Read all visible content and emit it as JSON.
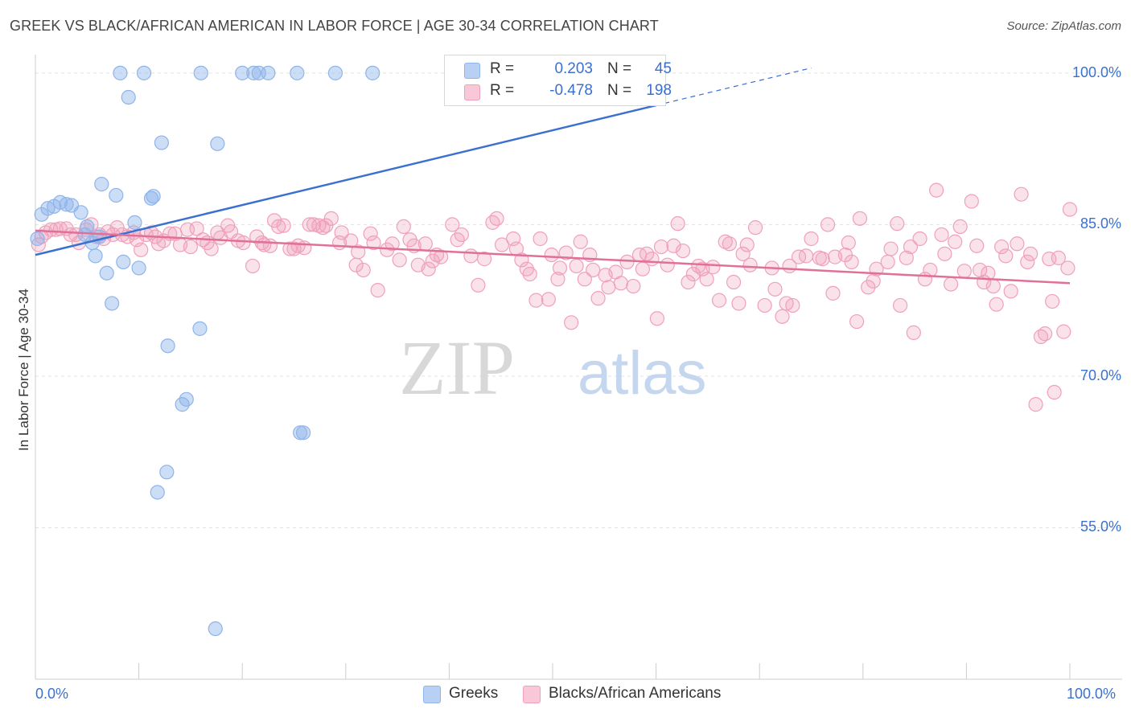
{
  "title": "GREEK VS BLACK/AFRICAN AMERICAN IN LABOR FORCE | AGE 30-34 CORRELATION CHART",
  "source": "Source: ZipAtlas.com",
  "watermark": {
    "zip": "ZIP",
    "atlas": "atlas"
  },
  "colors": {
    "blue": "#8fb4ea",
    "blue_fill": "rgba(143,180,234,0.45)",
    "blue_line": "#3a70d0",
    "pink": "#f0a0bb",
    "pink_fill": "rgba(240,160,187,0.30)",
    "pink_line": "#e0709a",
    "tick_label": "#3a70d0"
  },
  "legend": {
    "rows": [
      {
        "r_label": "R =",
        "r_value": "0.203",
        "n_label": "N =",
        "n_value": "45"
      },
      {
        "r_label": "R =",
        "r_value": "-0.478",
        "n_label": "N =",
        "n_value": "198"
      }
    ]
  },
  "bottom_legend": {
    "greeks": "Greeks",
    "blacks": "Blacks/African Americans"
  },
  "chart_data": {
    "type": "scatter",
    "title": "GREEK VS BLACK/AFRICAN AMERICAN IN LABOR FORCE | AGE 30-34 CORRELATION CHART",
    "xlabel": "",
    "ylabel": "In Labor Force | Age 30-34",
    "xlim": [
      0,
      100
    ],
    "ylim": [
      40,
      101.5
    ],
    "x_tick_labels": [
      "0.0%",
      "100.0%"
    ],
    "y_ticks": [
      55,
      70,
      85,
      100
    ],
    "y_tick_labels": [
      "55.0%",
      "70.0%",
      "85.0%",
      "100.0%"
    ],
    "grid": true,
    "series": [
      {
        "name": "Greeks",
        "r": 0.203,
        "n": 45,
        "trend": {
          "x0": 0,
          "y0": 82.0,
          "x1": 75,
          "y1": 100.5,
          "solid_until_x": 60
        },
        "points": [
          [
            0.2,
            83.6
          ],
          [
            0.6,
            86.0
          ],
          [
            1.2,
            86.6
          ],
          [
            1.8,
            86.8
          ],
          [
            2.4,
            87.2
          ],
          [
            3.0,
            87.0
          ],
          [
            3.5,
            86.9
          ],
          [
            4.4,
            86.2
          ],
          [
            4.8,
            84.0
          ],
          [
            5.0,
            84.8
          ],
          [
            5.5,
            83.2
          ],
          [
            5.8,
            81.9
          ],
          [
            6.2,
            83.8
          ],
          [
            6.4,
            89.0
          ],
          [
            6.9,
            80.2
          ],
          [
            7.4,
            77.2
          ],
          [
            7.8,
            87.9
          ],
          [
            8.2,
            100.0
          ],
          [
            8.5,
            81.3
          ],
          [
            9.0,
            97.6
          ],
          [
            9.6,
            85.2
          ],
          [
            10.0,
            80.7
          ],
          [
            10.5,
            100.0
          ],
          [
            11.2,
            87.6
          ],
          [
            11.4,
            87.8
          ],
          [
            12.2,
            93.1
          ],
          [
            12.8,
            73.0
          ],
          [
            11.8,
            58.5
          ],
          [
            12.7,
            60.5
          ],
          [
            14.2,
            67.2
          ],
          [
            14.6,
            67.7
          ],
          [
            15.9,
            74.7
          ],
          [
            16.0,
            100.0
          ],
          [
            17.4,
            45.0
          ],
          [
            17.6,
            93.0
          ],
          [
            20.0,
            100.0
          ],
          [
            21.1,
            100.0
          ],
          [
            21.6,
            100.0
          ],
          [
            22.5,
            100.0
          ],
          [
            25.3,
            100.0
          ],
          [
            25.6,
            64.4
          ],
          [
            25.9,
            64.4
          ],
          [
            29.0,
            100.0
          ],
          [
            32.6,
            100.0
          ],
          [
            43.5,
            100.0
          ]
        ]
      },
      {
        "name": "Blacks/African Americans",
        "r": -0.478,
        "n": 198,
        "trend": {
          "x0": 0,
          "y0": 84.4,
          "x1": 100,
          "y1": 79.2
        },
        "points": [
          [
            0.3,
            83.0
          ],
          [
            0.6,
            83.8
          ],
          [
            1.0,
            84.2
          ],
          [
            1.5,
            84.5
          ],
          [
            2.0,
            84.5
          ],
          [
            2.4,
            84.6
          ],
          [
            3.0,
            84.6
          ],
          [
            3.4,
            84.0
          ],
          [
            3.9,
            84.0
          ],
          [
            4.2,
            83.2
          ],
          [
            4.9,
            84.5
          ],
          [
            5.4,
            85.0
          ],
          [
            5.9,
            83.8
          ],
          [
            6.2,
            84.0
          ],
          [
            6.6,
            83.6
          ],
          [
            7.0,
            84.3
          ],
          [
            7.5,
            84.0
          ],
          [
            7.9,
            84.7
          ],
          [
            8.4,
            84.0
          ],
          [
            8.9,
            83.8
          ],
          [
            9.5,
            84.2
          ],
          [
            9.8,
            83.5
          ],
          [
            10.2,
            82.5
          ],
          [
            10.7,
            84.0
          ],
          [
            11.2,
            84.2
          ],
          [
            11.6,
            83.8
          ],
          [
            11.9,
            83.1
          ],
          [
            12.4,
            83.4
          ],
          [
            13.0,
            84.1
          ],
          [
            13.5,
            84.1
          ],
          [
            14.0,
            83.0
          ],
          [
            14.7,
            84.5
          ],
          [
            15.0,
            82.8
          ],
          [
            15.6,
            84.6
          ],
          [
            16.2,
            83.5
          ],
          [
            16.6,
            83.2
          ],
          [
            17.0,
            82.6
          ],
          [
            17.6,
            84.2
          ],
          [
            17.9,
            83.7
          ],
          [
            18.6,
            84.9
          ],
          [
            18.9,
            84.3
          ],
          [
            19.6,
            83.4
          ],
          [
            20.1,
            83.2
          ],
          [
            21.0,
            80.9
          ],
          [
            21.4,
            83.8
          ],
          [
            21.9,
            83.2
          ],
          [
            22.1,
            83.0
          ],
          [
            22.7,
            82.9
          ],
          [
            23.1,
            85.4
          ],
          [
            23.5,
            84.8
          ],
          [
            24.0,
            84.9
          ],
          [
            24.6,
            82.6
          ],
          [
            25.0,
            82.6
          ],
          [
            25.4,
            82.9
          ],
          [
            26.0,
            82.7
          ],
          [
            26.5,
            85.0
          ],
          [
            26.9,
            85.0
          ],
          [
            27.4,
            84.9
          ],
          [
            27.8,
            84.7
          ],
          [
            28.1,
            84.9
          ],
          [
            28.6,
            85.6
          ],
          [
            29.4,
            83.2
          ],
          [
            29.6,
            84.2
          ],
          [
            30.5,
            83.4
          ],
          [
            31.0,
            81.0
          ],
          [
            31.2,
            82.3
          ],
          [
            31.7,
            80.5
          ],
          [
            32.4,
            84.1
          ],
          [
            32.7,
            83.2
          ],
          [
            33.1,
            78.5
          ],
          [
            34.0,
            82.5
          ],
          [
            34.5,
            83.1
          ],
          [
            35.2,
            81.5
          ],
          [
            35.6,
            84.8
          ],
          [
            36.2,
            83.5
          ],
          [
            36.6,
            82.9
          ],
          [
            37.0,
            81.0
          ],
          [
            37.7,
            83.1
          ],
          [
            38.0,
            80.6
          ],
          [
            38.4,
            81.4
          ],
          [
            38.8,
            82.0
          ],
          [
            39.2,
            81.8
          ],
          [
            40.3,
            85.0
          ],
          [
            40.8,
            83.5
          ],
          [
            41.2,
            84.0
          ],
          [
            42.1,
            81.9
          ],
          [
            42.8,
            79.0
          ],
          [
            43.4,
            81.6
          ],
          [
            44.2,
            85.2
          ],
          [
            44.6,
            85.6
          ],
          [
            45.1,
            83.0
          ],
          [
            46.2,
            83.6
          ],
          [
            46.5,
            82.6
          ],
          [
            47.0,
            81.5
          ],
          [
            47.5,
            80.6
          ],
          [
            47.8,
            80.1
          ],
          [
            48.4,
            77.5
          ],
          [
            48.8,
            83.6
          ],
          [
            49.6,
            77.6
          ],
          [
            49.9,
            82.0
          ],
          [
            50.5,
            79.6
          ],
          [
            50.7,
            80.7
          ],
          [
            51.3,
            82.2
          ],
          [
            51.8,
            75.3
          ],
          [
            52.3,
            80.9
          ],
          [
            52.7,
            83.3
          ],
          [
            53.1,
            79.6
          ],
          [
            53.6,
            82.0
          ],
          [
            53.9,
            80.5
          ],
          [
            54.4,
            77.7
          ],
          [
            55.1,
            80.0
          ],
          [
            55.4,
            78.8
          ],
          [
            56.1,
            80.3
          ],
          [
            56.6,
            79.2
          ],
          [
            57.2,
            81.3
          ],
          [
            57.8,
            78.9
          ],
          [
            58.4,
            82.0
          ],
          [
            58.7,
            80.6
          ],
          [
            59.1,
            82.1
          ],
          [
            59.6,
            81.6
          ],
          [
            60.1,
            75.7
          ],
          [
            60.5,
            82.8
          ],
          [
            61.1,
            81.0
          ],
          [
            61.7,
            82.9
          ],
          [
            62.1,
            85.1
          ],
          [
            62.6,
            82.4
          ],
          [
            63.1,
            79.3
          ],
          [
            63.6,
            80.1
          ],
          [
            64.1,
            80.9
          ],
          [
            64.5,
            80.6
          ],
          [
            64.9,
            79.6
          ],
          [
            65.5,
            80.8
          ],
          [
            66.1,
            77.5
          ],
          [
            66.7,
            83.3
          ],
          [
            67.1,
            83.1
          ],
          [
            67.5,
            79.3
          ],
          [
            68.0,
            77.2
          ],
          [
            68.4,
            82.1
          ],
          [
            68.8,
            83.0
          ],
          [
            69.1,
            81.0
          ],
          [
            69.6,
            84.7
          ],
          [
            70.5,
            77.0
          ],
          [
            71.2,
            80.7
          ],
          [
            71.5,
            78.6
          ],
          [
            72.2,
            75.9
          ],
          [
            72.6,
            77.2
          ],
          [
            72.9,
            80.9
          ],
          [
            73.2,
            77.0
          ],
          [
            73.8,
            81.8
          ],
          [
            74.5,
            81.9
          ],
          [
            75.0,
            83.6
          ],
          [
            75.8,
            81.7
          ],
          [
            76.1,
            81.6
          ],
          [
            76.6,
            85.0
          ],
          [
            77.1,
            78.2
          ],
          [
            77.3,
            81.8
          ],
          [
            78.3,
            82.0
          ],
          [
            78.6,
            83.2
          ],
          [
            78.9,
            81.3
          ],
          [
            79.4,
            75.4
          ],
          [
            79.7,
            85.6
          ],
          [
            80.5,
            78.8
          ],
          [
            81.0,
            79.4
          ],
          [
            81.3,
            80.6
          ],
          [
            82.4,
            81.3
          ],
          [
            82.7,
            82.6
          ],
          [
            83.3,
            85.1
          ],
          [
            83.6,
            77.0
          ],
          [
            84.2,
            81.7
          ],
          [
            84.6,
            82.8
          ],
          [
            84.9,
            74.3
          ],
          [
            85.5,
            83.6
          ],
          [
            86.0,
            79.6
          ],
          [
            86.5,
            80.5
          ],
          [
            87.1,
            88.4
          ],
          [
            87.6,
            84.0
          ],
          [
            87.9,
            82.1
          ],
          [
            88.5,
            79.1
          ],
          [
            88.9,
            83.3
          ],
          [
            89.4,
            84.8
          ],
          [
            89.8,
            80.4
          ],
          [
            90.5,
            87.3
          ],
          [
            91.0,
            82.9
          ],
          [
            91.3,
            80.5
          ],
          [
            91.7,
            79.3
          ],
          [
            92.1,
            80.2
          ],
          [
            92.6,
            78.9
          ],
          [
            92.9,
            77.1
          ],
          [
            93.4,
            82.8
          ],
          [
            93.8,
            81.9
          ],
          [
            94.3,
            78.4
          ],
          [
            94.9,
            83.1
          ],
          [
            95.3,
            88.0
          ],
          [
            95.9,
            81.3
          ],
          [
            96.2,
            82.1
          ],
          [
            96.7,
            67.2
          ],
          [
            97.2,
            73.9
          ],
          [
            97.6,
            74.2
          ],
          [
            98.0,
            81.6
          ],
          [
            98.3,
            77.4
          ],
          [
            98.5,
            68.4
          ],
          [
            98.9,
            81.7
          ],
          [
            99.4,
            74.4
          ],
          [
            99.8,
            80.7
          ],
          [
            100.0,
            86.5
          ]
        ]
      }
    ]
  }
}
